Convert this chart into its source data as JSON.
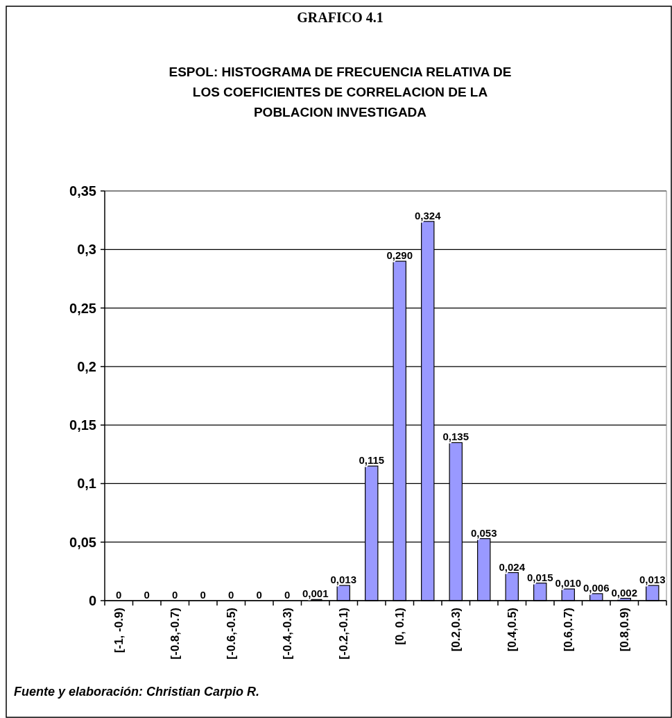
{
  "chart_data": {
    "type": "bar",
    "title": "GRAFICO 4.1",
    "subtitle": "ESPOL: HISTOGRAMA DE FRECUENCIA RELATIVA DE\nLOS COEFICIENTES DE CORRELACION DE LA\nPOBLACION INVESTIGADA",
    "categories": [
      "[-1,  -0.9)",
      null,
      "[-0.8,-0.7)",
      null,
      "[-0.6,-0.5)",
      null,
      "[-0.4,-0.3)",
      null,
      "[-0.2,-0.1)",
      null,
      "[0, 0.1)",
      null,
      "[0.2,0.3)",
      null,
      "[0.4,0.5)",
      null,
      "[0.6,0.7)",
      null,
      "[0.8,0.9)",
      null
    ],
    "values": [
      0,
      0,
      0,
      0,
      0,
      0,
      0,
      0.001,
      0.013,
      0.115,
      0.29,
      0.324,
      0.135,
      0.053,
      0.024,
      0.015,
      0.01,
      0.006,
      0.002,
      0.013
    ],
    "value_labels": [
      "0",
      "0",
      "0",
      "0",
      "0",
      "0",
      "0",
      "0,001",
      "0,013",
      "0,115",
      "0,290",
      "0,324",
      "0,135",
      "0,053",
      "0,024",
      "0,015",
      "0,010",
      "0,006",
      "0,002",
      "0,013"
    ],
    "color": "#9999ff",
    "ylim": [
      0,
      0.35
    ],
    "yticks": [
      0,
      {
        "value": 0.05,
        "label": "0,05"
      },
      {
        "value": 0.1,
        "label": "0,1"
      },
      {
        "value": 0.15,
        "label": "0,15"
      },
      {
        "value": 0.2,
        "label": "0,2"
      },
      {
        "value": 0.25,
        "label": "0,25"
      },
      {
        "value": 0.3,
        "label": "0,3"
      },
      {
        "value": 0.35,
        "label": "0,35"
      }
    ],
    "grid": "y",
    "annotations": [
      "Fuente y elaboración: Christian Carpio R."
    ]
  }
}
